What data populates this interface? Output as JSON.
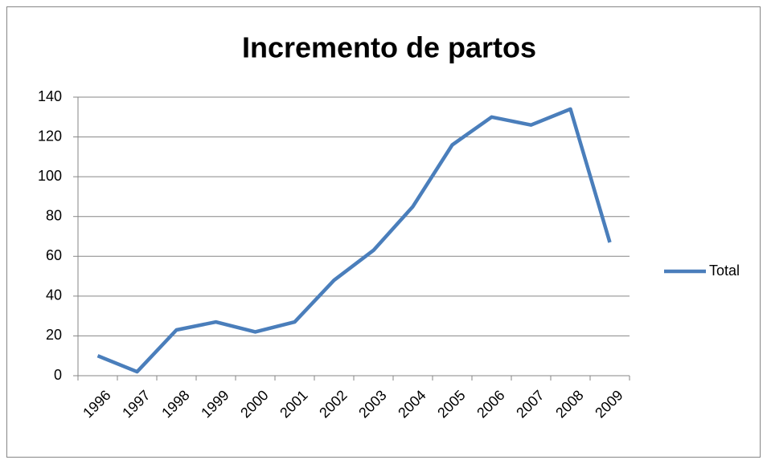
{
  "chart_data": {
    "type": "line",
    "title": "Incremento de partos",
    "categories": [
      "1996",
      "1997",
      "1998",
      "1999",
      "2000",
      "2001",
      "2002",
      "2003",
      "2004",
      "2005",
      "2006",
      "2007",
      "2008",
      "2009"
    ],
    "series": [
      {
        "name": "Total",
        "color": "#4a7ebb",
        "values": [
          10,
          2,
          23,
          27,
          22,
          27,
          48,
          63,
          85,
          116,
          130,
          126,
          134,
          67
        ]
      }
    ],
    "ylim": [
      0,
      140
    ],
    "yticks": [
      0,
      20,
      40,
      60,
      80,
      100,
      120,
      140
    ],
    "grid": true,
    "legend": "right"
  }
}
